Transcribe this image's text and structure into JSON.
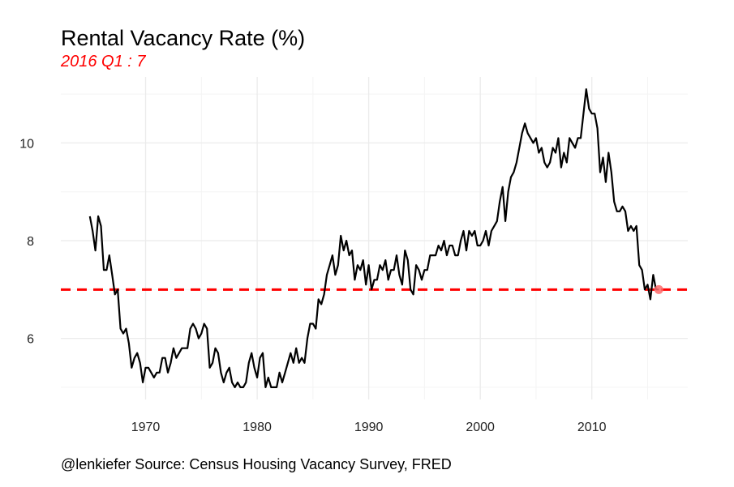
{
  "chart_data": {
    "type": "line",
    "title": "Rental Vacancy Rate (%)",
    "subtitle": "2016 Q1 : 7",
    "caption": "@lenkiefer Source: Census Housing Vacancy Survey, FRED",
    "xlabel": "",
    "ylabel": "",
    "xlim": [
      1962.4,
      2018.6
    ],
    "ylim": [
      4.75,
      11.35
    ],
    "x_ticks": [
      1970,
      1980,
      1990,
      2000,
      2010
    ],
    "x_tick_labels": [
      "1970",
      "1980",
      "1990",
      "2000",
      "2010"
    ],
    "y_ticks": [
      6,
      8,
      10
    ],
    "y_tick_labels": [
      "6",
      "8",
      "10"
    ],
    "grid": true,
    "reference_line": {
      "y": 7,
      "color": "#ff0000",
      "style": "dashed"
    },
    "latest_point": {
      "x": 2016.0,
      "y": 7.0,
      "color": "#ff6a6a"
    },
    "line_color": "#000000",
    "series": [
      {
        "points": [
          [
            1965.0,
            8.5
          ],
          [
            1965.25,
            8.2
          ],
          [
            1965.5,
            7.8
          ],
          [
            1965.75,
            8.5
          ],
          [
            1966.0,
            8.3
          ],
          [
            1966.25,
            7.4
          ],
          [
            1966.5,
            7.4
          ],
          [
            1966.75,
            7.7
          ],
          [
            1967.0,
            7.3
          ],
          [
            1967.25,
            6.9
          ],
          [
            1967.5,
            7.0
          ],
          [
            1967.75,
            6.2
          ],
          [
            1968.0,
            6.1
          ],
          [
            1968.25,
            6.2
          ],
          [
            1968.5,
            5.9
          ],
          [
            1968.75,
            5.4
          ],
          [
            1969.0,
            5.6
          ],
          [
            1969.25,
            5.7
          ],
          [
            1969.5,
            5.5
          ],
          [
            1969.75,
            5.1
          ],
          [
            1970.0,
            5.4
          ],
          [
            1970.25,
            5.4
          ],
          [
            1970.5,
            5.3
          ],
          [
            1970.75,
            5.2
          ],
          [
            1971.0,
            5.3
          ],
          [
            1971.25,
            5.3
          ],
          [
            1971.5,
            5.6
          ],
          [
            1971.75,
            5.6
          ],
          [
            1972.0,
            5.3
          ],
          [
            1972.25,
            5.5
          ],
          [
            1972.5,
            5.8
          ],
          [
            1972.75,
            5.6
          ],
          [
            1973.0,
            5.7
          ],
          [
            1973.25,
            5.8
          ],
          [
            1973.5,
            5.8
          ],
          [
            1973.75,
            5.8
          ],
          [
            1974.0,
            6.2
          ],
          [
            1974.25,
            6.3
          ],
          [
            1974.5,
            6.2
          ],
          [
            1974.75,
            6.0
          ],
          [
            1975.0,
            6.1
          ],
          [
            1975.25,
            6.3
          ],
          [
            1975.5,
            6.2
          ],
          [
            1975.75,
            5.4
          ],
          [
            1976.0,
            5.5
          ],
          [
            1976.25,
            5.8
          ],
          [
            1976.5,
            5.7
          ],
          [
            1976.75,
            5.3
          ],
          [
            1977.0,
            5.1
          ],
          [
            1977.25,
            5.3
          ],
          [
            1977.5,
            5.4
          ],
          [
            1977.75,
            5.1
          ],
          [
            1978.0,
            5.0
          ],
          [
            1978.25,
            5.1
          ],
          [
            1978.5,
            5.0
          ],
          [
            1978.75,
            5.0
          ],
          [
            1979.0,
            5.1
          ],
          [
            1979.25,
            5.5
          ],
          [
            1979.5,
            5.7
          ],
          [
            1979.75,
            5.4
          ],
          [
            1980.0,
            5.2
          ],
          [
            1980.25,
            5.6
          ],
          [
            1980.5,
            5.7
          ],
          [
            1980.75,
            5.0
          ],
          [
            1981.0,
            5.2
          ],
          [
            1981.25,
            5.0
          ],
          [
            1981.5,
            5.0
          ],
          [
            1981.75,
            5.0
          ],
          [
            1982.0,
            5.3
          ],
          [
            1982.25,
            5.1
          ],
          [
            1982.5,
            5.3
          ],
          [
            1982.75,
            5.5
          ],
          [
            1983.0,
            5.7
          ],
          [
            1983.25,
            5.5
          ],
          [
            1983.5,
            5.8
          ],
          [
            1983.75,
            5.5
          ],
          [
            1984.0,
            5.6
          ],
          [
            1984.25,
            5.5
          ],
          [
            1984.5,
            6.0
          ],
          [
            1984.75,
            6.3
          ],
          [
            1985.0,
            6.3
          ],
          [
            1985.25,
            6.2
          ],
          [
            1985.5,
            6.8
          ],
          [
            1985.75,
            6.7
          ],
          [
            1986.0,
            6.9
          ],
          [
            1986.25,
            7.3
          ],
          [
            1986.5,
            7.5
          ],
          [
            1986.75,
            7.7
          ],
          [
            1987.0,
            7.3
          ],
          [
            1987.25,
            7.5
          ],
          [
            1987.5,
            8.1
          ],
          [
            1987.75,
            7.8
          ],
          [
            1988.0,
            8.0
          ],
          [
            1988.25,
            7.7
          ],
          [
            1988.5,
            7.8
          ],
          [
            1988.75,
            7.2
          ],
          [
            1989.0,
            7.5
          ],
          [
            1989.25,
            7.4
          ],
          [
            1989.5,
            7.6
          ],
          [
            1989.75,
            7.1
          ],
          [
            1990.0,
            7.5
          ],
          [
            1990.25,
            7.0
          ],
          [
            1990.5,
            7.2
          ],
          [
            1990.75,
            7.2
          ],
          [
            1991.0,
            7.5
          ],
          [
            1991.25,
            7.4
          ],
          [
            1991.5,
            7.6
          ],
          [
            1991.75,
            7.2
          ],
          [
            1992.0,
            7.4
          ],
          [
            1992.25,
            7.4
          ],
          [
            1992.5,
            7.7
          ],
          [
            1992.75,
            7.3
          ],
          [
            1993.0,
            7.1
          ],
          [
            1993.25,
            7.8
          ],
          [
            1993.5,
            7.6
          ],
          [
            1993.75,
            7.0
          ],
          [
            1994.0,
            6.9
          ],
          [
            1994.25,
            7.5
          ],
          [
            1994.5,
            7.4
          ],
          [
            1994.75,
            7.2
          ],
          [
            1995.0,
            7.4
          ],
          [
            1995.25,
            7.4
          ],
          [
            1995.5,
            7.7
          ],
          [
            1995.75,
            7.7
          ],
          [
            1996.0,
            7.7
          ],
          [
            1996.25,
            7.9
          ],
          [
            1996.5,
            7.8
          ],
          [
            1996.75,
            8.0
          ],
          [
            1997.0,
            7.7
          ],
          [
            1997.25,
            7.9
          ],
          [
            1997.5,
            7.9
          ],
          [
            1997.75,
            7.7
          ],
          [
            1998.0,
            7.7
          ],
          [
            1998.25,
            8.0
          ],
          [
            1998.5,
            8.2
          ],
          [
            1998.75,
            7.8
          ],
          [
            1999.0,
            8.2
          ],
          [
            1999.25,
            8.1
          ],
          [
            1999.5,
            8.2
          ],
          [
            1999.75,
            7.9
          ],
          [
            2000.0,
            7.9
          ],
          [
            2000.25,
            8.0
          ],
          [
            2000.5,
            8.2
          ],
          [
            2000.75,
            7.9
          ],
          [
            2001.0,
            8.2
          ],
          [
            2001.25,
            8.3
          ],
          [
            2001.5,
            8.4
          ],
          [
            2001.75,
            8.8
          ],
          [
            2002.0,
            9.1
          ],
          [
            2002.25,
            8.4
          ],
          [
            2002.5,
            9.0
          ],
          [
            2002.75,
            9.3
          ],
          [
            2003.0,
            9.4
          ],
          [
            2003.25,
            9.6
          ],
          [
            2003.5,
            9.9
          ],
          [
            2003.75,
            10.2
          ],
          [
            2004.0,
            10.4
          ],
          [
            2004.25,
            10.2
          ],
          [
            2004.5,
            10.1
          ],
          [
            2004.75,
            10.0
          ],
          [
            2005.0,
            10.1
          ],
          [
            2005.25,
            9.8
          ],
          [
            2005.5,
            9.9
          ],
          [
            2005.75,
            9.6
          ],
          [
            2006.0,
            9.5
          ],
          [
            2006.25,
            9.6
          ],
          [
            2006.5,
            9.9
          ],
          [
            2006.75,
            9.8
          ],
          [
            2007.0,
            10.1
          ],
          [
            2007.25,
            9.5
          ],
          [
            2007.5,
            9.8
          ],
          [
            2007.75,
            9.6
          ],
          [
            2008.0,
            10.1
          ],
          [
            2008.25,
            10.0
          ],
          [
            2008.5,
            9.9
          ],
          [
            2008.75,
            10.1
          ],
          [
            2009.0,
            10.1
          ],
          [
            2009.25,
            10.6
          ],
          [
            2009.5,
            11.1
          ],
          [
            2009.75,
            10.7
          ],
          [
            2010.0,
            10.6
          ],
          [
            2010.25,
            10.6
          ],
          [
            2010.5,
            10.3
          ],
          [
            2010.75,
            9.4
          ],
          [
            2011.0,
            9.7
          ],
          [
            2011.25,
            9.2
          ],
          [
            2011.5,
            9.8
          ],
          [
            2011.75,
            9.4
          ],
          [
            2012.0,
            8.8
          ],
          [
            2012.25,
            8.6
          ],
          [
            2012.5,
            8.6
          ],
          [
            2012.75,
            8.7
          ],
          [
            2013.0,
            8.6
          ],
          [
            2013.25,
            8.2
          ],
          [
            2013.5,
            8.3
          ],
          [
            2013.75,
            8.2
          ],
          [
            2014.0,
            8.3
          ],
          [
            2014.25,
            7.5
          ],
          [
            2014.5,
            7.4
          ],
          [
            2014.75,
            7.0
          ],
          [
            2015.0,
            7.1
          ],
          [
            2015.25,
            6.8
          ],
          [
            2015.5,
            7.3
          ],
          [
            2015.75,
            7.0
          ],
          [
            2016.0,
            7.0
          ]
        ]
      }
    ]
  }
}
